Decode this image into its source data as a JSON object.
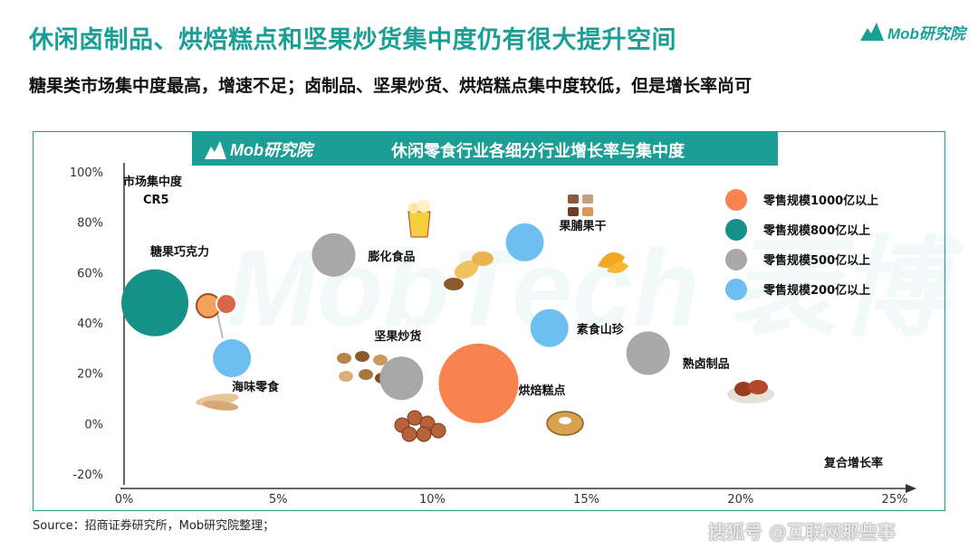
{
  "page": {
    "title": "休闲卤制品、烘焙糕点和坚果炒货集中度仍有很大提升空间",
    "subtitle": "糖果类市场集中度最高，增速不足；卤制品、坚果炒货、烘焙糕点集中度较低，但是增长率尚可",
    "brand": "Mob研究院",
    "source": "Source：招商证券研究所，Mob研究院整理；",
    "watermark": "搜狐号 @互联网那些事",
    "background_watermark": "MobTech 袤博"
  },
  "colors": {
    "teal": "#1a9e96",
    "orange": "#f8834e",
    "dark_teal": "#15918a",
    "gray": "#a8a8a8",
    "light_blue": "#6dbff2"
  },
  "chart_data": {
    "type": "scatter",
    "title": "休闲零食行业各细分行业增长率与集中度",
    "xlabel": "复合增长率",
    "ylabel": "市场集中度CR5",
    "xlim": [
      0,
      25
    ],
    "ylim": [
      -20,
      100
    ],
    "x_ticks": [
      "0%",
      "5%",
      "10%",
      "15%",
      "20%",
      "25%"
    ],
    "y_ticks": [
      "100%",
      "80%",
      "60%",
      "40%",
      "20%",
      "0%",
      "-20%"
    ],
    "grid": false,
    "legend_position": "right",
    "legend": [
      {
        "label": "零售规模1000亿以上",
        "color": "#f8834e"
      },
      {
        "label": "零售规模800亿以上",
        "color": "#15918a"
      },
      {
        "label": "零售规模500亿以上",
        "color": "#a8a8a8"
      },
      {
        "label": "零售规模200亿以上",
        "color": "#6dbff2"
      }
    ],
    "points": [
      {
        "name": "糖果巧克力",
        "x": 1.0,
        "y": 48,
        "tier": "零售规模800亿以上"
      },
      {
        "name": "海味零食",
        "x": 3.5,
        "y": 26,
        "tier": "零售规模200亿以上"
      },
      {
        "name": "膨化食品",
        "x": 6.8,
        "y": 67,
        "tier": "零售规模500亿以上"
      },
      {
        "name": "坚果炒货",
        "x": 9.0,
        "y": 18,
        "tier": "零售规模500亿以上"
      },
      {
        "name": "烘焙糕点",
        "x": 11.5,
        "y": 16,
        "tier": "零售规模1000亿以上"
      },
      {
        "name": "果脯果干",
        "x": 13.0,
        "y": 72,
        "tier": "零售规模200亿以上"
      },
      {
        "name": "素食山珍",
        "x": 13.8,
        "y": 38,
        "tier": "零售规模200亿以上"
      },
      {
        "name": "熟卤制品",
        "x": 17.0,
        "y": 28,
        "tier": "零售规模500亿以上"
      }
    ]
  }
}
